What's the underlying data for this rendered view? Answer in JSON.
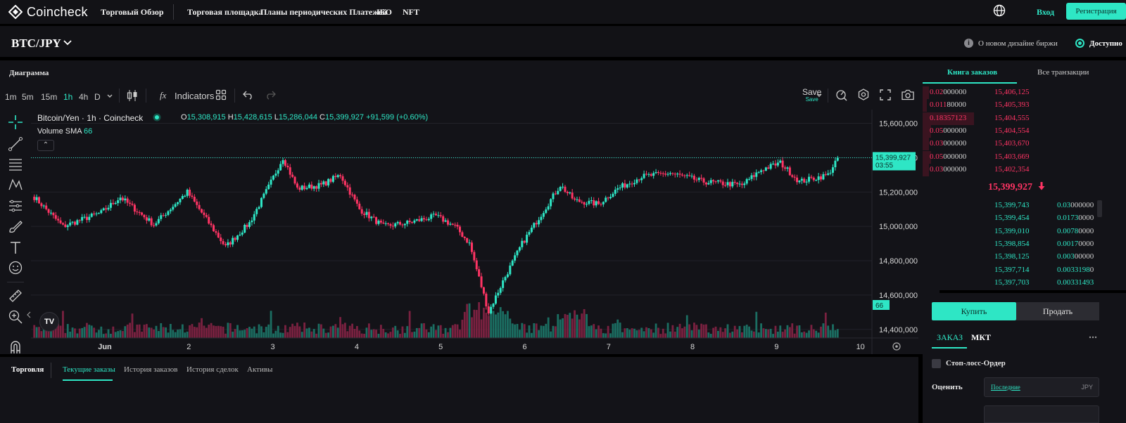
{
  "header": {
    "brand": "Coincheck",
    "nav": [
      "Торговый Обзор",
      "Торговая площадка",
      "Планы периодических Платежей",
      "IEO",
      "NFT"
    ],
    "login": "Вход",
    "register": "Регистрация",
    "colors": {
      "accent": "#2ee6c5",
      "up": "#2ee6c5",
      "down": "#ff3464"
    }
  },
  "pairbar": {
    "pair": "BTC/JPY",
    "design_link": "О новом дизайне биржи",
    "available": "Доступно"
  },
  "chart_panel": {
    "title": "Диаграмма",
    "timeframes": [
      "1m",
      "5m",
      "15m",
      "1h",
      "4h",
      "D"
    ],
    "active_timeframe": "1h",
    "indicators": "Indicators",
    "save": "Save",
    "save_sub": "Save",
    "legend_symbol": "Bitcoin/Yen · 1h · Coincheck",
    "legend_o_label": "O",
    "legend_o": "15,308,915",
    "legend_h_label": "H",
    "legend_h": "15,428,615",
    "legend_l_label": "L",
    "legend_l": "15,286,044",
    "legend_c_label": "C",
    "legend_c": "15,399,927",
    "legend_change": "+91,599 (+0.60%)",
    "volume_label": "Volume SMA",
    "volume_value": "66",
    "price_label": "15,399,927",
    "countdown": "03:55",
    "volume_badge": "66",
    "tv_logo": "TV"
  },
  "chart_data": {
    "type": "candlestick",
    "title": "Bitcoin/Yen · 1h · Coincheck",
    "y_ticks": [
      "15,600,000",
      "15,400,000",
      "15,200,000",
      "15,000,000",
      "14,800,000",
      "14,600,000",
      "14,400,000"
    ],
    "y_tick_values": [
      15600000,
      15400000,
      15200000,
      15000000,
      14800000,
      14600000,
      14400000
    ],
    "ylim": [
      14350000,
      15680000
    ],
    "x_ticks": [
      "Jun",
      "2",
      "3",
      "4",
      "5",
      "6",
      "7",
      "8",
      "9",
      "10"
    ],
    "last_price": 15399927,
    "anchors_close": [
      [
        0,
        15170000
      ],
      [
        12,
        15000000
      ],
      [
        28,
        15080000
      ],
      [
        36,
        15170000
      ],
      [
        50,
        15010000
      ],
      [
        64,
        15200000
      ],
      [
        80,
        14880000
      ],
      [
        90,
        15020000
      ],
      [
        98,
        15230000
      ],
      [
        104,
        15400000
      ],
      [
        110,
        15220000
      ],
      [
        120,
        15240000
      ],
      [
        128,
        15300000
      ],
      [
        136,
        15100000
      ],
      [
        146,
        15000000
      ],
      [
        156,
        15020000
      ],
      [
        168,
        15060000
      ],
      [
        176,
        15000000
      ],
      [
        182,
        14900000
      ],
      [
        186,
        14700000
      ],
      [
        190,
        14500000
      ],
      [
        196,
        14680000
      ],
      [
        204,
        14900000
      ],
      [
        212,
        15070000
      ],
      [
        220,
        15240000
      ],
      [
        226,
        15150000
      ],
      [
        236,
        15130000
      ],
      [
        244,
        15220000
      ],
      [
        254,
        15290000
      ],
      [
        266,
        15310000
      ],
      [
        280,
        15260000
      ],
      [
        296,
        15240000
      ],
      [
        304,
        15330000
      ],
      [
        312,
        15370000
      ],
      [
        320,
        15260000
      ],
      [
        332,
        15300000
      ],
      [
        336,
        15400000
      ]
    ],
    "volume_max": 100
  },
  "orderbook": {
    "tabs": [
      "Книга заказов",
      "Все транзакции"
    ],
    "active_tab": 0,
    "asks": [
      {
        "qty_bold": "0.02",
        "qty_rest": "000000",
        "price": "15,406,125",
        "depth": 0.03
      },
      {
        "qty_bold": "0.011",
        "qty_rest": "80000",
        "price": "15,405,393",
        "depth": 0.02
      },
      {
        "qty_bold": "0.18357123",
        "qty_rest": "",
        "price": "15,404,555",
        "depth": 0.25
      },
      {
        "qty_bold": "0.05",
        "qty_rest": "000000",
        "price": "15,404,554",
        "depth": 0.04
      },
      {
        "qty_bold": "0.03",
        "qty_rest": "000000",
        "price": "15,403,670",
        "depth": 0.03
      },
      {
        "qty_bold": "0.05",
        "qty_rest": "000000",
        "price": "15,403,669",
        "depth": 0.04
      },
      {
        "qty_bold": "0.03",
        "qty_rest": "000000",
        "price": "15,402,354",
        "depth": 0.03
      }
    ],
    "last_price": "15,399,927",
    "bids": [
      {
        "price": "15,399,743",
        "qty_bold": "0.03",
        "qty_rest": "000000"
      },
      {
        "price": "15,399,454",
        "qty_bold": "0.0173",
        "qty_rest": "0000"
      },
      {
        "price": "15,399,010",
        "qty_bold": "0.0078",
        "qty_rest": "0000"
      },
      {
        "price": "15,398,854",
        "qty_bold": "0.0017",
        "qty_rest": "0000"
      },
      {
        "price": "15,398,125",
        "qty_bold": "0.003",
        "qty_rest": "00000"
      },
      {
        "price": "15,397,714",
        "qty_bold": "0.0033198",
        "qty_rest": "0"
      },
      {
        "price": "15,397,703",
        "qty_bold": "0.00331493",
        "qty_rest": ""
      }
    ]
  },
  "trade_form": {
    "buy": "Купить",
    "sell": "Продать",
    "order_tab": "ЗАКАЗ",
    "mkt_tab": "МКТ",
    "stop_loss": "Стоп-лосс-Ордер",
    "price_label": "Оценить",
    "price_link": "Последние",
    "currency": "JPY"
  },
  "bottom": {
    "label": "Торговля",
    "tabs": [
      "Текущие заказы",
      "История заказов",
      "История сделок",
      "Активы"
    ],
    "active_tab": 0
  }
}
